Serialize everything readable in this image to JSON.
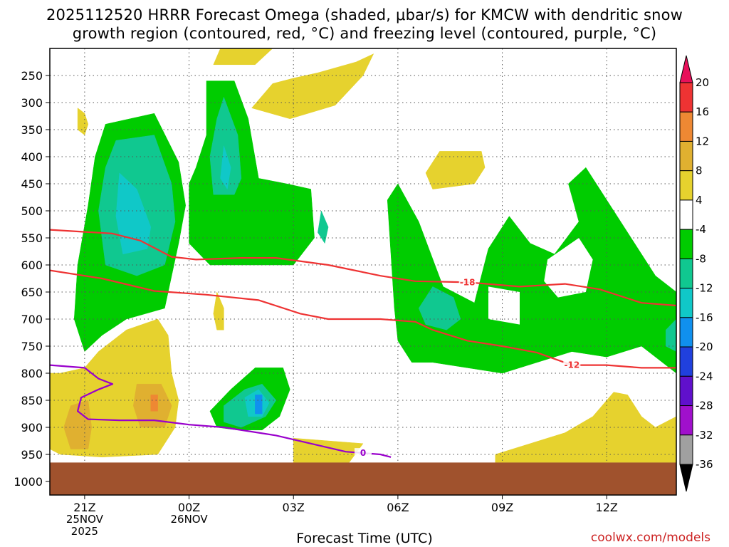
{
  "title_line1": "2025112520 HRRR Forecast Omega (shaded, μbar/s) for KMCW with dendritic snow",
  "title_line2": "growth region (contoured, red, °C) and freezing level (contoured, purple, °C)",
  "credit": "coolwx.com/models",
  "colors": {
    "ground": "#a0522d",
    "dgz_line": "#ee3333",
    "freezing_line": "#9900cc"
  },
  "chart_data": {
    "type": "heatmap",
    "title": "2025112520 HRRR Forecast Omega (shaded, μbar/s) for KMCW",
    "xlabel": "Forecast Time (UTC)",
    "ylabel": "",
    "x_ticks": [
      {
        "hour": 1,
        "label": "21Z"
      },
      {
        "hour": 4,
        "label": "00Z"
      },
      {
        "hour": 7,
        "label": "03Z"
      },
      {
        "hour": 10,
        "label": "06Z"
      },
      {
        "hour": 13,
        "label": "09Z"
      },
      {
        "hour": 16,
        "label": "12Z"
      }
    ],
    "date_labels": [
      {
        "hour": 1,
        "lines": [
          "25NOV",
          "2025"
        ]
      },
      {
        "hour": 4,
        "lines": [
          "26NOV"
        ]
      }
    ],
    "xlim": [
      0,
      18
    ],
    "y_pressure_levels": [
      250,
      300,
      350,
      400,
      450,
      500,
      550,
      600,
      650,
      700,
      750,
      800,
      850,
      900,
      950,
      1000
    ],
    "ylim": [
      200,
      1025
    ],
    "surface_pressure": 965,
    "colorbar": {
      "levels": [
        20,
        16,
        12,
        8,
        4,
        -4,
        -8,
        -12,
        -16,
        -20,
        -24,
        -28,
        -32,
        -36
      ],
      "colors": [
        "#e8105a",
        "#ee3333",
        "#ee8833",
        "#e0b030",
        "#e6d22e",
        "#ffffff",
        "#00cc00",
        "#10c890",
        "#10c8c8",
        "#1090ee",
        "#2040dd",
        "#6010cc",
        "#a010cc",
        "#a0a0a0",
        "#000000"
      ]
    },
    "regions": [
      {
        "level": "4-8",
        "color": "#e6d22e",
        "points": [
          [
            4.9,
            200
          ],
          [
            6.4,
            200
          ],
          [
            5.9,
            230
          ],
          [
            4.7,
            230
          ]
        ]
      },
      {
        "level": "4-8",
        "color": "#e6d22e",
        "points": [
          [
            9.3,
            210
          ],
          [
            9.0,
            250
          ],
          [
            8.2,
            305
          ],
          [
            6.9,
            330
          ],
          [
            5.8,
            310
          ],
          [
            6.4,
            265
          ],
          [
            7.0,
            255
          ],
          [
            7.7,
            245
          ],
          [
            8.8,
            225
          ]
        ]
      },
      {
        "level": "4-8",
        "color": "#e6d22e",
        "points": [
          [
            0.8,
            310
          ],
          [
            1.0,
            320
          ],
          [
            1.1,
            340
          ],
          [
            1.0,
            360
          ],
          [
            0.8,
            350
          ]
        ]
      },
      {
        "level": "4-8",
        "color": "#e6d22e",
        "points": [
          [
            11.2,
            390
          ],
          [
            12.4,
            390
          ],
          [
            12.5,
            420
          ],
          [
            12.2,
            450
          ],
          [
            11.0,
            460
          ],
          [
            10.8,
            430
          ]
        ]
      },
      {
        "level": "4-8",
        "color": "#e6d22e",
        "points": [
          [
            0.3,
            800
          ],
          [
            1.0,
            790
          ],
          [
            1.4,
            760
          ],
          [
            2.2,
            720
          ],
          [
            3.1,
            700
          ],
          [
            3.4,
            730
          ],
          [
            3.5,
            800
          ],
          [
            3.7,
            850
          ],
          [
            3.6,
            900
          ],
          [
            3.1,
            950
          ],
          [
            1.5,
            955
          ],
          [
            0.3,
            950
          ],
          [
            0,
            940
          ],
          [
            0,
            800
          ]
        ]
      },
      {
        "level": "4-8",
        "color": "#e6d22e",
        "points": [
          [
            4.8,
            650
          ],
          [
            5.0,
            680
          ],
          [
            5.0,
            720
          ],
          [
            4.8,
            720
          ],
          [
            4.7,
            690
          ]
        ]
      },
      {
        "level": "4-8",
        "color": "#e6d22e",
        "points": [
          [
            7.0,
            920
          ],
          [
            9.0,
            930
          ],
          [
            8.6,
            965
          ],
          [
            7.0,
            965
          ]
        ]
      },
      {
        "level": "4-8",
        "color": "#e6d22e",
        "points": [
          [
            12.8,
            950
          ],
          [
            14.8,
            910
          ],
          [
            15.6,
            880
          ],
          [
            16.2,
            835
          ],
          [
            16.6,
            840
          ],
          [
            17.0,
            880
          ],
          [
            17.4,
            900
          ],
          [
            18.0,
            880
          ],
          [
            18,
            965
          ],
          [
            12.8,
            965
          ]
        ]
      },
      {
        "level": "8-12",
        "color": "#e0b030",
        "points": [
          [
            0.6,
            860
          ],
          [
            1.1,
            850
          ],
          [
            1.2,
            900
          ],
          [
            1.1,
            940
          ],
          [
            0.6,
            940
          ],
          [
            0.4,
            900
          ]
        ]
      },
      {
        "level": "8-12",
        "color": "#e0b030",
        "points": [
          [
            2.5,
            820
          ],
          [
            3.2,
            820
          ],
          [
            3.5,
            860
          ],
          [
            3.3,
            900
          ],
          [
            2.6,
            900
          ],
          [
            2.4,
            860
          ]
        ]
      },
      {
        "level": "12-16",
        "color": "#ee8833",
        "points": [
          [
            2.9,
            840
          ],
          [
            3.1,
            840
          ],
          [
            3.1,
            870
          ],
          [
            2.9,
            870
          ]
        ]
      },
      {
        "level": "-4--8",
        "color": "#00cc00",
        "points": [
          [
            1.6,
            340
          ],
          [
            3.0,
            320
          ],
          [
            3.7,
            410
          ],
          [
            3.9,
            490
          ],
          [
            3.7,
            560
          ],
          [
            3.3,
            680
          ],
          [
            2.2,
            700
          ],
          [
            1.5,
            730
          ],
          [
            1.0,
            760
          ],
          [
            0.7,
            700
          ],
          [
            0.8,
            600
          ],
          [
            1.1,
            490
          ],
          [
            1.3,
            400
          ]
        ]
      },
      {
        "level": "-4--8",
        "color": "#00cc00",
        "points": [
          [
            4.5,
            260
          ],
          [
            5.3,
            260
          ],
          [
            5.7,
            330
          ],
          [
            6.0,
            440
          ],
          [
            6.8,
            450
          ],
          [
            7.5,
            460
          ],
          [
            7.6,
            550
          ],
          [
            7.0,
            600
          ],
          [
            6.1,
            600
          ],
          [
            5.4,
            600
          ],
          [
            4.6,
            600
          ],
          [
            4.0,
            560
          ],
          [
            4.0,
            490
          ],
          [
            4.0,
            450
          ],
          [
            4.2,
            420
          ],
          [
            4.5,
            360
          ]
        ]
      },
      {
        "level": "-4--8",
        "color": "#00cc00",
        "points": [
          [
            9.8,
            580
          ],
          [
            9.7,
            480
          ],
          [
            10.0,
            450
          ],
          [
            10.6,
            520
          ],
          [
            11.3,
            640
          ],
          [
            12.2,
            670
          ],
          [
            12.6,
            570
          ],
          [
            13.2,
            510
          ],
          [
            13.8,
            560
          ],
          [
            14.5,
            580
          ],
          [
            15.2,
            520
          ],
          [
            14.9,
            450
          ],
          [
            15.4,
            420
          ],
          [
            16.5,
            530
          ],
          [
            17.4,
            620
          ],
          [
            18,
            650
          ],
          [
            18,
            800
          ],
          [
            17.0,
            750
          ],
          [
            16.0,
            770
          ],
          [
            15.0,
            760
          ],
          [
            14.0,
            780
          ],
          [
            13.0,
            800
          ],
          [
            12.0,
            790
          ],
          [
            11.0,
            780
          ],
          [
            10.4,
            780
          ],
          [
            10.0,
            740
          ],
          [
            9.9,
            680
          ]
        ]
      },
      {
        "level": "-4--8",
        "color": "#00cc00",
        "points": [
          [
            4.6,
            870
          ],
          [
            5.2,
            830
          ],
          [
            5.9,
            790
          ],
          [
            6.7,
            790
          ],
          [
            6.9,
            830
          ],
          [
            6.6,
            880
          ],
          [
            6.1,
            905
          ],
          [
            5.4,
            905
          ],
          [
            4.8,
            900
          ]
        ]
      },
      {
        "level": "-8--12",
        "color": "#10c890",
        "points": [
          [
            1.9,
            370
          ],
          [
            3.0,
            360
          ],
          [
            3.5,
            450
          ],
          [
            3.6,
            520
          ],
          [
            3.3,
            600
          ],
          [
            2.5,
            620
          ],
          [
            1.6,
            600
          ],
          [
            1.4,
            500
          ],
          [
            1.6,
            420
          ]
        ]
      },
      {
        "level": "-8--12",
        "color": "#10c890",
        "points": [
          [
            5.0,
            290
          ],
          [
            5.4,
            360
          ],
          [
            5.5,
            440
          ],
          [
            5.3,
            470
          ],
          [
            4.7,
            470
          ],
          [
            4.6,
            400
          ],
          [
            4.8,
            330
          ]
        ]
      },
      {
        "level": "-8--12",
        "color": "#10c890",
        "points": [
          [
            11.0,
            640
          ],
          [
            11.6,
            660
          ],
          [
            11.8,
            700
          ],
          [
            11.4,
            720
          ],
          [
            10.8,
            710
          ],
          [
            10.6,
            680
          ]
        ]
      },
      {
        "level": "-8--12",
        "color": "#10c890",
        "points": [
          [
            5.0,
            860
          ],
          [
            5.6,
            830
          ],
          [
            6.1,
            820
          ],
          [
            6.5,
            850
          ],
          [
            6.2,
            880
          ],
          [
            5.5,
            900
          ],
          [
            5.0,
            890
          ]
        ]
      },
      {
        "level": "-8--12",
        "color": "#10c890",
        "points": [
          [
            7.8,
            500
          ],
          [
            8.0,
            530
          ],
          [
            7.9,
            560
          ],
          [
            7.7,
            540
          ]
        ]
      },
      {
        "level": "-8--12",
        "color": "#10c890",
        "points": [
          [
            17.7,
            720
          ],
          [
            18,
            700
          ],
          [
            18,
            760
          ],
          [
            17.7,
            750
          ]
        ]
      },
      {
        "level": "-12--16",
        "color": "#10c8c8",
        "points": [
          [
            2.0,
            430
          ],
          [
            2.5,
            460
          ],
          [
            2.9,
            530
          ],
          [
            2.8,
            570
          ],
          [
            2.1,
            580
          ],
          [
            1.9,
            510
          ]
        ]
      },
      {
        "level": "-12--16",
        "color": "#10c8c8",
        "points": [
          [
            5.0,
            380
          ],
          [
            5.2,
            420
          ],
          [
            5.1,
            460
          ],
          [
            4.9,
            440
          ]
        ]
      },
      {
        "level": "-12--16",
        "color": "#10c8c8",
        "points": [
          [
            5.6,
            845
          ],
          [
            6.0,
            830
          ],
          [
            6.3,
            855
          ],
          [
            6.1,
            880
          ],
          [
            5.7,
            880
          ]
        ]
      },
      {
        "level": "-16--20",
        "color": "#1090ee",
        "points": [
          [
            5.9,
            840
          ],
          [
            6.1,
            840
          ],
          [
            6.1,
            875
          ],
          [
            5.9,
            875
          ]
        ]
      }
    ],
    "holes": [
      {
        "points": [
          [
            12.6,
            640
          ],
          [
            13.5,
            650
          ],
          [
            13.5,
            710
          ],
          [
            12.6,
            700
          ]
        ]
      },
      {
        "points": [
          [
            14.3,
            590
          ],
          [
            15.2,
            550
          ],
          [
            15.6,
            590
          ],
          [
            15.4,
            650
          ],
          [
            14.6,
            660
          ],
          [
            14.2,
            630
          ]
        ]
      }
    ],
    "contours": [
      {
        "name": "dgz-minus18",
        "label": "-18",
        "label_hour": 12.0,
        "color": "#ee3333",
        "points": [
          [
            0,
            535
          ],
          [
            1.8,
            542
          ],
          [
            2.6,
            555
          ],
          [
            3.5,
            585
          ],
          [
            4.2,
            590
          ],
          [
            5.5,
            587
          ],
          [
            6.5,
            587
          ],
          [
            8.0,
            600
          ],
          [
            9.5,
            620
          ],
          [
            10.5,
            630
          ],
          [
            12.0,
            632
          ],
          [
            13.5,
            640
          ],
          [
            14.8,
            635
          ],
          [
            15.8,
            645
          ],
          [
            17.0,
            670
          ],
          [
            18,
            675
          ]
        ]
      },
      {
        "name": "dgz-minus12",
        "label": "-12",
        "label_hour": 15.0,
        "color": "#ee3333",
        "points": [
          [
            0,
            610
          ],
          [
            1.5,
            625
          ],
          [
            3.0,
            648
          ],
          [
            4.5,
            655
          ],
          [
            6.0,
            665
          ],
          [
            7.2,
            690
          ],
          [
            8.0,
            700
          ],
          [
            9.5,
            700
          ],
          [
            10.5,
            705
          ],
          [
            11.0,
            720
          ],
          [
            12.0,
            740
          ],
          [
            13.0,
            750
          ],
          [
            14.0,
            762
          ],
          [
            15.0,
            785
          ],
          [
            16.0,
            785
          ],
          [
            17.0,
            790
          ],
          [
            18,
            790
          ]
        ]
      },
      {
        "name": "freezing-level",
        "label": "0",
        "label_hour": 9.0,
        "color": "#9900cc",
        "points": [
          [
            0,
            785
          ],
          [
            1.0,
            790
          ],
          [
            1.4,
            810
          ],
          [
            1.8,
            820
          ],
          [
            1.4,
            830
          ],
          [
            0.9,
            845
          ],
          [
            0.8,
            870
          ],
          [
            1.1,
            885
          ],
          [
            2.0,
            887
          ],
          [
            3.0,
            887
          ],
          [
            4.0,
            895
          ],
          [
            5.0,
            900
          ],
          [
            6.5,
            915
          ],
          [
            7.5,
            930
          ],
          [
            8.5,
            945
          ],
          [
            9.5,
            950
          ],
          [
            9.8,
            955
          ]
        ]
      }
    ]
  }
}
